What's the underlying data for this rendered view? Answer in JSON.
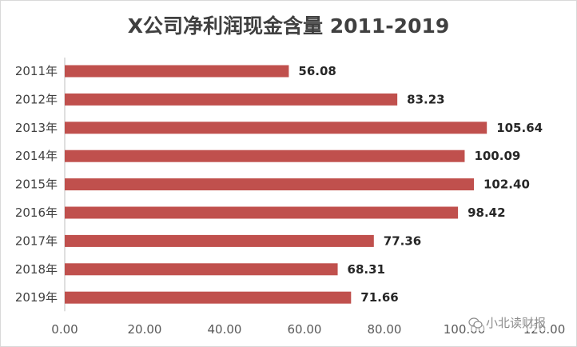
{
  "chart_data": {
    "type": "bar",
    "orientation": "horizontal",
    "title": "X公司净利润现金含量 2011-2019",
    "categories": [
      "2011年",
      "2012年",
      "2013年",
      "2014年",
      "2015年",
      "2016年",
      "2017年",
      "2018年",
      "2019年"
    ],
    "values": [
      56.08,
      83.23,
      105.64,
      100.09,
      102.4,
      98.42,
      77.36,
      68.31,
      71.66
    ],
    "data_labels": [
      "56.08",
      "83.23",
      "105.64",
      "100.09",
      "102.40",
      "98.42",
      "77.36",
      "68.31",
      "71.66"
    ],
    "xlim": [
      0,
      120
    ],
    "x_ticks": [
      "0.00",
      "20.00",
      "40.00",
      "60.00",
      "80.00",
      "100.00",
      "120.00"
    ],
    "xlabel": "",
    "ylabel": "",
    "grid": false,
    "legend": "none",
    "bar_color": "#c0504d"
  },
  "watermark": {
    "text": "小北读财报",
    "icon": "wechat-icon"
  }
}
